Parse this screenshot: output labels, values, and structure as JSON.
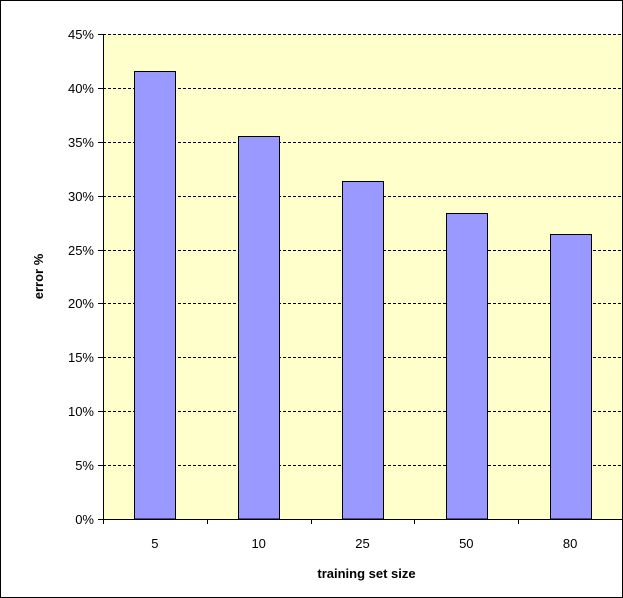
{
  "chart_data": {
    "type": "bar",
    "xlabel": "training set size",
    "ylabel": "error %",
    "categories": [
      "5",
      "10",
      "25",
      "50",
      "80"
    ],
    "values": [
      41.6,
      35.5,
      31.4,
      28.4,
      26.4
    ],
    "ylim": [
      0,
      45
    ],
    "yticks": [
      "0%",
      "5%",
      "10%",
      "15%",
      "20%",
      "25%",
      "30%",
      "35%",
      "40%",
      "45%"
    ],
    "grid": true,
    "legend": "none",
    "colors": {
      "plot_background": "#FFFFCC",
      "bar_fill": "#9999FF",
      "bar_stroke": "#000000",
      "gridline": "#000000"
    }
  }
}
